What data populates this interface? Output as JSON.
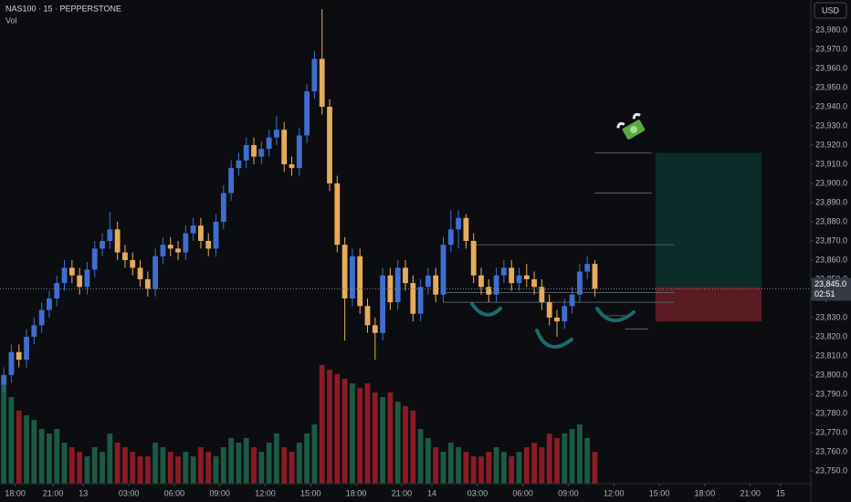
{
  "chart_data": {
    "type": "candlestick",
    "title": "NAS100 · 15 · PEPPERSTONE",
    "volume_label": "Vol",
    "currency": "USD",
    "x": [
      1,
      3,
      5,
      7,
      9,
      11,
      13,
      15,
      17,
      19,
      21,
      23,
      25,
      27,
      29,
      31,
      33,
      35,
      37,
      39,
      41,
      43,
      45,
      47,
      49,
      51,
      53,
      55,
      57,
      59,
      61,
      63,
      65,
      67,
      69,
      71,
      73,
      75,
      77,
      79,
      81,
      83,
      85,
      87,
      89,
      91,
      93,
      95,
      97,
      99,
      101,
      103,
      105,
      107,
      109,
      111,
      113,
      115,
      117,
      119,
      121,
      123,
      125,
      127,
      129,
      131,
      133,
      135,
      137,
      139,
      141,
      143,
      145,
      147,
      149,
      151,
      153,
      155,
      157
    ],
    "open": [
      23795,
      23800,
      23812,
      23808,
      23820,
      23826,
      23834,
      23840,
      23848,
      23856,
      23852,
      23846,
      23855,
      23866,
      23870,
      23876,
      23864,
      23860,
      23856,
      23850,
      23845,
      23862,
      23868,
      23866,
      23864,
      23874,
      23878,
      23870,
      23866,
      23880,
      23895,
      23908,
      23912,
      23920,
      23914,
      23918,
      23924,
      23928,
      23910,
      23908,
      23925,
      23948,
      23965,
      23940,
      23900,
      23868,
      23840,
      23862,
      23836,
      23826,
      23822,
      23852,
      23838,
      23856,
      23848,
      23832,
      23846,
      23852,
      23842,
      23868,
      23876,
      23882,
      23870,
      23852,
      23846,
      23842,
      23852,
      23856,
      23848,
      23852,
      23850,
      23846,
      23838,
      23830,
      23828,
      23836,
      23842,
      23854,
      23858
    ],
    "high": [
      23804,
      23816,
      23816,
      23824,
      23830,
      23838,
      23844,
      23852,
      23860,
      23860,
      23856,
      23859,
      23870,
      23874,
      23885,
      23880,
      23868,
      23864,
      23860,
      23854,
      23866,
      23872,
      23872,
      23870,
      23878,
      23882,
      23882,
      23874,
      23884,
      23899,
      23912,
      23916,
      23924,
      23924,
      23922,
      23928,
      23935,
      23932,
      23914,
      23929,
      23952,
      23969,
      23991,
      23944,
      23904,
      23872,
      23866,
      23866,
      23840,
      23830,
      23856,
      23856,
      23860,
      23860,
      23852,
      23850,
      23856,
      23856,
      23872,
      23886,
      23886,
      23884,
      23874,
      23856,
      23850,
      23856,
      23860,
      23860,
      23856,
      23858,
      23854,
      23850,
      23842,
      23834,
      23840,
      23846,
      23858,
      23862,
      23860
    ],
    "low": [
      23791,
      23796,
      23804,
      23804,
      23816,
      23822,
      23830,
      23836,
      23844,
      23848,
      23842,
      23842,
      23851,
      23862,
      23866,
      23860,
      23856,
      23852,
      23846,
      23841,
      23841,
      23858,
      23862,
      23860,
      23860,
      23870,
      23866,
      23862,
      23862,
      23876,
      23891,
      23904,
      23908,
      23910,
      23910,
      23914,
      23920,
      23906,
      23904,
      23904,
      23921,
      23944,
      23936,
      23896,
      23864,
      23818,
      23836,
      23832,
      23822,
      23808,
      23818,
      23834,
      23834,
      23844,
      23828,
      23828,
      23842,
      23838,
      23838,
      23864,
      23866,
      23866,
      23848,
      23842,
      23838,
      23838,
      23848,
      23844,
      23844,
      23846,
      23842,
      23834,
      23826,
      23820,
      23824,
      23832,
      23838,
      23850,
      23841
    ],
    "close": [
      23800,
      23812,
      23808,
      23820,
      23826,
      23834,
      23840,
      23848,
      23856,
      23852,
      23846,
      23855,
      23866,
      23870,
      23876,
      23864,
      23860,
      23856,
      23850,
      23845,
      23862,
      23868,
      23866,
      23864,
      23874,
      23878,
      23870,
      23866,
      23880,
      23895,
      23908,
      23912,
      23920,
      23914,
      23918,
      23924,
      23928,
      23910,
      23908,
      23925,
      23948,
      23965,
      23940,
      23900,
      23868,
      23840,
      23862,
      23836,
      23826,
      23822,
      23852,
      23838,
      23856,
      23848,
      23832,
      23846,
      23852,
      23842,
      23868,
      23876,
      23882,
      23870,
      23852,
      23846,
      23842,
      23852,
      23856,
      23848,
      23852,
      23850,
      23846,
      23838,
      23830,
      23828,
      23836,
      23842,
      23854,
      23858,
      23845
    ],
    "volume": [
      110,
      95,
      80,
      75,
      70,
      60,
      55,
      60,
      45,
      40,
      35,
      30,
      40,
      35,
      55,
      45,
      40,
      35,
      30,
      30,
      45,
      40,
      35,
      30,
      35,
      30,
      40,
      35,
      30,
      40,
      50,
      45,
      50,
      40,
      35,
      45,
      55,
      40,
      35,
      45,
      55,
      65,
      130,
      125,
      120,
      115,
      110,
      105,
      110,
      100,
      95,
      100,
      90,
      85,
      80,
      60,
      50,
      40,
      35,
      45,
      40,
      35,
      30,
      30,
      35,
      40,
      35,
      30,
      35,
      40,
      45,
      40,
      55,
      50,
      55,
      60,
      65,
      50,
      35
    ],
    "up_color": "#3e6fd0",
    "down_color": "#e6ac5c",
    "volume_up_color": "#1b5a44",
    "volume_down_color": "#8a1b27",
    "xlim": [
      0,
      214
    ],
    "xticks": [
      {
        "value": 4,
        "label": "18:00"
      },
      {
        "value": 14,
        "label": "21:00"
      },
      {
        "value": 22,
        "label": "13"
      },
      {
        "value": 34,
        "label": "03:00"
      },
      {
        "value": 46,
        "label": "06:00"
      },
      {
        "value": 58,
        "label": "09:00"
      },
      {
        "value": 70,
        "label": "12:00"
      },
      {
        "value": 82,
        "label": "15:00"
      },
      {
        "value": 94,
        "label": "18:00"
      },
      {
        "value": 106,
        "label": "21:00"
      },
      {
        "value": 114,
        "label": "14"
      },
      {
        "value": 126,
        "label": "03:00"
      },
      {
        "value": 138,
        "label": "06:00"
      },
      {
        "value": 150,
        "label": "09:00"
      },
      {
        "value": 162,
        "label": "12:00"
      },
      {
        "value": 174,
        "label": "15:00"
      },
      {
        "value": 186,
        "label": "18:00"
      },
      {
        "value": 198,
        "label": "21:00"
      },
      {
        "value": 206,
        "label": "15"
      }
    ],
    "ylim": [
      23743.3,
      23995.7
    ],
    "yticks": [
      {
        "value": 23750,
        "label": "23,750.0"
      },
      {
        "value": 23760,
        "label": "23,760.0"
      },
      {
        "value": 23770,
        "label": "23,770.0"
      },
      {
        "value": 23780,
        "label": "23,780.0"
      },
      {
        "value": 23790,
        "label": "23,790.0"
      },
      {
        "value": 23800,
        "label": "23,800.0"
      },
      {
        "value": 23810,
        "label": "23,810.0"
      },
      {
        "value": 23820,
        "label": "23,820.0"
      },
      {
        "value": 23830,
        "label": "23,830.0"
      },
      {
        "value": 23840,
        "label": "23,840.0"
      },
      {
        "value": 23850,
        "label": "23,850.0"
      },
      {
        "value": 23860,
        "label": "23,860.0"
      },
      {
        "value": 23870,
        "label": "23,870.0"
      },
      {
        "value": 23880,
        "label": "23,880.0"
      },
      {
        "value": 23890,
        "label": "23,890.0"
      },
      {
        "value": 23900,
        "label": "23,900.0"
      },
      {
        "value": 23910,
        "label": "23,910.0"
      },
      {
        "value": 23920,
        "label": "23,920.0"
      },
      {
        "value": 23930,
        "label": "23,930.0"
      },
      {
        "value": 23940,
        "label": "23,940.0"
      },
      {
        "value": 23950,
        "label": "23,950.0"
      },
      {
        "value": 23960,
        "label": "23,960.0"
      },
      {
        "value": 23970,
        "label": "23,970.0"
      },
      {
        "value": 23980,
        "label": "23,980.0"
      }
    ],
    "volume_lim": [
      0,
      160
    ],
    "last_price": {
      "value": 23845,
      "label": "23,845.0"
    },
    "countdown": "02:51",
    "position": {
      "entry": 23846,
      "target": 23916,
      "stop": 23828,
      "from": 173,
      "to": 201
    },
    "levels": [
      {
        "value": 23868,
        "from": 124,
        "to": 178
      },
      {
        "value": 23916,
        "from": 157,
        "to": 172
      },
      {
        "value": 23895,
        "from": 157,
        "to": 172
      },
      {
        "value": 23843,
        "from": 117,
        "to": 178
      },
      {
        "value": 23838,
        "from": 117,
        "to": 178
      },
      {
        "value": 23831,
        "from": 159,
        "to": 166
      },
      {
        "value": 23824,
        "from": 165,
        "to": 171
      }
    ],
    "grid": false
  }
}
